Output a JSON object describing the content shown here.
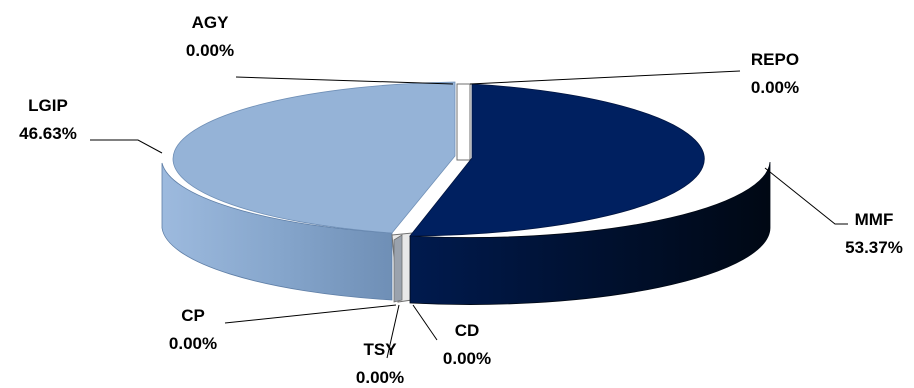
{
  "chart_data": {
    "type": "pie",
    "title": "",
    "style": "3d-exploded",
    "categories": [
      "MMF",
      "LGIP",
      "AGY",
      "REPO",
      "CP",
      "TSY",
      "CD"
    ],
    "values": [
      53.37,
      46.63,
      0.0,
      0.0,
      0.0,
      0.0,
      0.0
    ],
    "unit": "%",
    "slices": [
      {
        "name": "MMF",
        "value_label": "53.37%",
        "color": "#002060"
      },
      {
        "name": "LGIP",
        "value_label": "46.63%",
        "color": "#95B3D7"
      },
      {
        "name": "AGY",
        "value_label": "0.00%"
      },
      {
        "name": "REPO",
        "value_label": "0.00%"
      },
      {
        "name": "CP",
        "value_label": "0.00%"
      },
      {
        "name": "TSY",
        "value_label": "0.00%"
      },
      {
        "name": "CD",
        "value_label": "0.00%"
      }
    ],
    "legend": "none"
  }
}
